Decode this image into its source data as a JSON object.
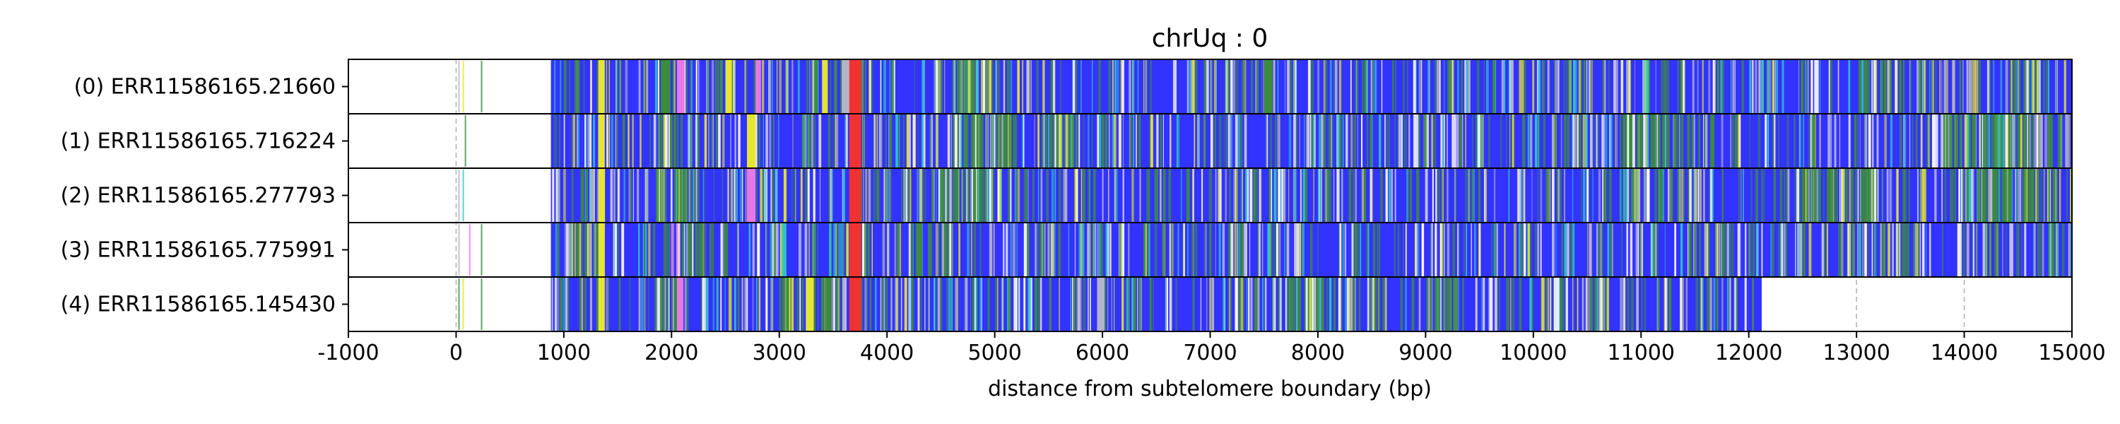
{
  "chart_data": {
    "type": "heatmap",
    "title": "chrUq : 0",
    "xlabel": "distance from subtelomere boundary (bp)",
    "ylabel": "",
    "xlim": [
      -1000,
      15000
    ],
    "xticks": [
      -1000,
      0,
      1000,
      2000,
      3000,
      4000,
      5000,
      6000,
      7000,
      8000,
      9000,
      10000,
      11000,
      12000,
      13000,
      14000,
      15000
    ],
    "grid": "vertical dashed gray lines at each x tick",
    "colors": {
      "base": "#3333ff",
      "green": "#3c8c3c",
      "yellow": "#e6e632",
      "white": "#ffffff",
      "light_gray": "#b4b4c8",
      "pink": "#e678e6",
      "cyan": "#32c8c8",
      "red": "#f03232"
    },
    "rows": [
      {
        "label": "(0) ERR11586165.21660",
        "read_start": 880,
        "read_end": 15000,
        "segments": [
          {
            "from": 1320,
            "to": 1380,
            "color": "yellow"
          },
          {
            "from": 1900,
            "to": 1990,
            "color": "green"
          },
          {
            "from": 2050,
            "to": 2120,
            "color": "pink"
          },
          {
            "from": 2500,
            "to": 2560,
            "color": "yellow"
          },
          {
            "from": 2780,
            "to": 2830,
            "color": "pink"
          },
          {
            "from": 3400,
            "to": 3450,
            "color": "yellow"
          },
          {
            "from": 3580,
            "to": 3660,
            "color": "light_gray"
          },
          {
            "from": 3650,
            "to": 3760,
            "color": "red"
          },
          {
            "from": 4600,
            "to": 4800,
            "color": "green"
          },
          {
            "from": 7500,
            "to": 7580,
            "color": "green"
          },
          {
            "from": 13000,
            "to": 13400,
            "color": "green"
          }
        ],
        "flanking_marks": [
          {
            "at": 20,
            "color": "light_gray"
          },
          {
            "at": 60,
            "color": "yellow"
          },
          {
            "at": 230,
            "color": "green"
          }
        ]
      },
      {
        "label": "(1) ERR11586165.716224",
        "read_start": 880,
        "read_end": 15000,
        "segments": [
          {
            "from": 1320,
            "to": 1380,
            "color": "yellow"
          },
          {
            "from": 1850,
            "to": 2050,
            "color": "green"
          },
          {
            "from": 2700,
            "to": 2780,
            "color": "yellow"
          },
          {
            "from": 3650,
            "to": 3760,
            "color": "red"
          },
          {
            "from": 4600,
            "to": 5200,
            "color": "green"
          },
          {
            "from": 5400,
            "to": 5800,
            "color": "green"
          },
          {
            "from": 10800,
            "to": 11700,
            "color": "green"
          },
          {
            "from": 13800,
            "to": 14700,
            "color": "green"
          }
        ],
        "flanking_marks": [
          {
            "at": 80,
            "color": "green"
          }
        ]
      },
      {
        "label": "(2) ERR11586165.277793",
        "read_start": 880,
        "read_end": 15000,
        "segments": [
          {
            "from": 1320,
            "to": 1380,
            "color": "yellow"
          },
          {
            "from": 1850,
            "to": 2150,
            "color": "green"
          },
          {
            "from": 2700,
            "to": 2780,
            "color": "pink"
          },
          {
            "from": 3650,
            "to": 3760,
            "color": "red"
          },
          {
            "from": 4400,
            "to": 5200,
            "color": "green"
          },
          {
            "from": 11050,
            "to": 11080,
            "color": "white"
          },
          {
            "from": 12400,
            "to": 13200,
            "color": "green"
          },
          {
            "from": 14000,
            "to": 14800,
            "color": "green"
          }
        ],
        "flanking_marks": [
          {
            "at": 20,
            "color": "light_gray"
          },
          {
            "at": 60,
            "color": "cyan"
          }
        ]
      },
      {
        "label": "(3) ERR11586165.775991",
        "read_start": 880,
        "read_end": 15000,
        "segments": [
          {
            "from": 1320,
            "to": 1380,
            "color": "yellow"
          },
          {
            "from": 1950,
            "to": 2150,
            "color": "pink"
          },
          {
            "from": 2150,
            "to": 2400,
            "color": "green"
          },
          {
            "from": 3650,
            "to": 3760,
            "color": "red"
          },
          {
            "from": 4200,
            "to": 4600,
            "color": "green"
          }
        ],
        "flanking_marks": [
          {
            "at": 20,
            "color": "light_gray"
          },
          {
            "at": 120,
            "color": "pink"
          },
          {
            "at": 230,
            "color": "green"
          }
        ]
      },
      {
        "label": "(4) ERR11586165.145430",
        "read_start": 880,
        "read_end": 12120,
        "segments": [
          {
            "from": 1320,
            "to": 1380,
            "color": "yellow"
          },
          {
            "from": 1800,
            "to": 2100,
            "color": "green"
          },
          {
            "from": 2050,
            "to": 2110,
            "color": "pink"
          },
          {
            "from": 3050,
            "to": 3550,
            "color": "green"
          },
          {
            "from": 3250,
            "to": 3320,
            "color": "yellow"
          },
          {
            "from": 3650,
            "to": 3760,
            "color": "red"
          },
          {
            "from": 5950,
            "to": 6020,
            "color": "light_gray"
          },
          {
            "from": 7700,
            "to": 8200,
            "color": "green"
          },
          {
            "from": 9000,
            "to": 9300,
            "color": "green"
          }
        ],
        "flanking_marks": [
          {
            "at": 20,
            "color": "green"
          },
          {
            "at": 60,
            "color": "yellow"
          },
          {
            "at": 230,
            "color": "green"
          }
        ]
      }
    ]
  }
}
